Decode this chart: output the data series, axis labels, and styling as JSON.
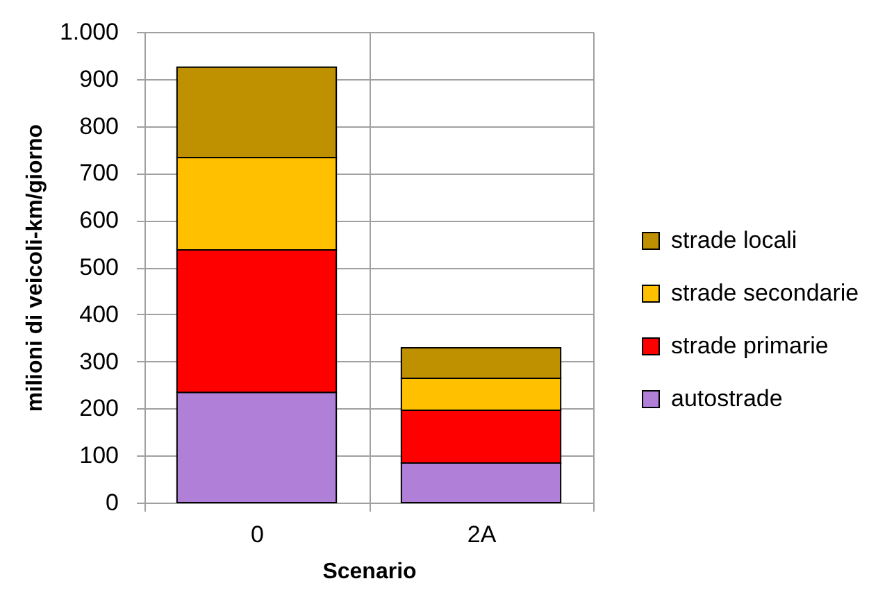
{
  "chart_data": {
    "type": "bar",
    "stacked": true,
    "xlabel": "Scenario",
    "ylabel": "milioni di veicoli-km/giorno",
    "categories": [
      "0",
      "2A"
    ],
    "series": [
      {
        "name": "autostrade",
        "color": "#b07fd8",
        "values": [
          234,
          84
        ]
      },
      {
        "name": "strade primarie",
        "color": "#ff0000",
        "values": [
          303,
          112
        ]
      },
      {
        "name": "strade secondarie",
        "color": "#ffc000",
        "values": [
          196,
          68
        ]
      },
      {
        "name": "strade locali",
        "color": "#bf9000",
        "values": [
          192,
          65
        ]
      }
    ],
    "ylim": [
      0,
      1000
    ],
    "yticks": [
      0,
      100,
      200,
      300,
      400,
      500,
      600,
      700,
      800,
      900,
      {
        "value": 1000,
        "label": "1.000"
      }
    ],
    "grid": true,
    "legend": "right"
  }
}
